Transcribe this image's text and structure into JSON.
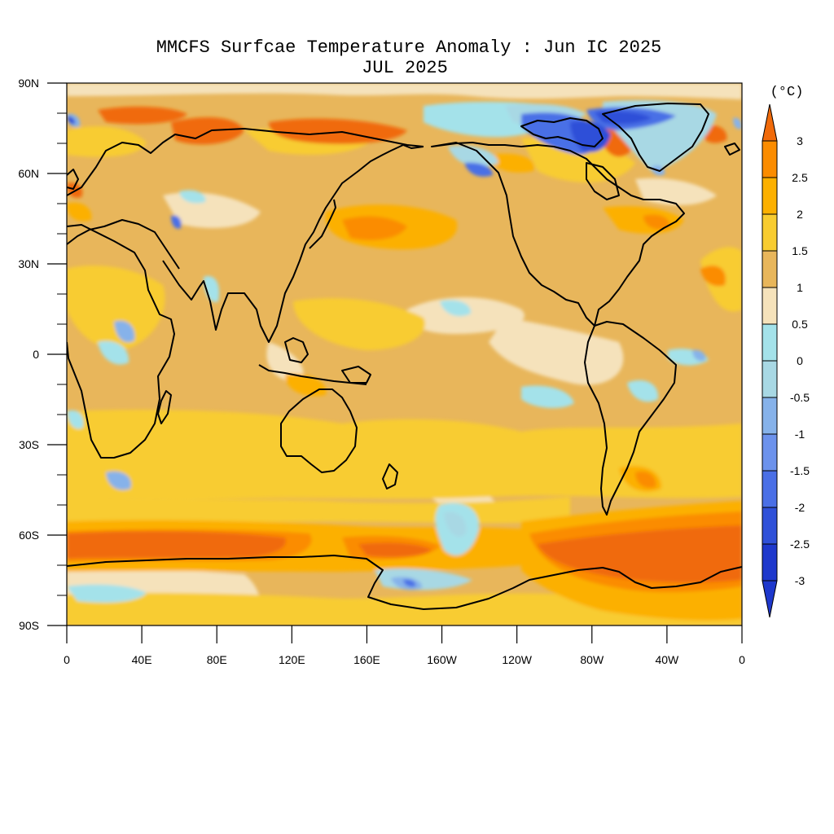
{
  "title": "MMCFS Surfcae Temperature Anomaly : Jun IC 2025",
  "subtitle": "JUL 2025",
  "units": "(°C)",
  "lat_ticks": [
    "90N",
    "60N",
    "30N",
    "0",
    "30S",
    "60S",
    "90S"
  ],
  "lon_ticks": [
    "0",
    "40E",
    "80E",
    "120E",
    "160E",
    "160W",
    "120W",
    "80W",
    "40W",
    "0"
  ],
  "colorbar": {
    "labels": [
      "3",
      "2.5",
      "2",
      "1.5",
      "1",
      "0.5",
      "0",
      "-0.5",
      "-1",
      "-1.5",
      "-2",
      "-2.5",
      "-3"
    ],
    "colors": [
      "#f06a0a",
      "#fb8c00",
      "#fcb000",
      "#f8cc30",
      "#e8b65b",
      "#f5e2bb",
      "#a4e2ea",
      "#a8d8e4",
      "#86b2ea",
      "#6c92ec",
      "#4a6fe6",
      "#2f50d8",
      "#1e38cc"
    ]
  },
  "chart_data": {
    "type": "heatmap",
    "title": "MMCFS Surfcae Temperature Anomaly : Jun IC 2025",
    "subtitle": "JUL 2025",
    "projection": "cylindrical equidistant, centered on 180",
    "lon_range": [
      0,
      360
    ],
    "lat_range": [
      -90,
      90
    ],
    "units": "°C",
    "contour_levels": [
      -3,
      -2.5,
      -2,
      -1.5,
      -1,
      -0.5,
      0,
      0.5,
      1,
      1.5,
      2,
      2.5,
      3
    ],
    "background_range": [
      0.5,
      1.5
    ],
    "features": [
      {
        "region": "Southern Ocean 55S-68S, 0-130E",
        "range": [
          2.5,
          3
        ]
      },
      {
        "region": "Southern Ocean 55S-75S, 80W-0",
        "range": [
          2.5,
          3
        ]
      },
      {
        "region": "Arctic coast of Eurasia 70N-80N",
        "range": [
          2.5,
          3
        ]
      },
      {
        "region": "Greenland and Canadian Archipelago",
        "range": [
          -3,
          -1
        ]
      },
      {
        "region": "Alaska coast",
        "range": [
          -2,
          -0.5
        ]
      },
      {
        "region": "Ross Sea 75S-80S",
        "range": [
          -2,
          -0.5
        ]
      },
      {
        "region": "South Pacific 60S-68S, 160W-180",
        "range": [
          -1,
          0
        ]
      },
      {
        "region": "Northwest Pacific 30N-45N",
        "range": [
          1.5,
          2.5
        ]
      },
      {
        "region": "North Atlantic 40N-50N",
        "range": [
          1.5,
          2.5
        ]
      },
      {
        "region": "Argentina",
        "range": [
          1.5,
          2.5
        ]
      },
      {
        "region": "Central Africa",
        "range": [
          -2,
          0
        ]
      },
      {
        "region": "Amazon basin",
        "range": [
          -1.5,
          0
        ]
      },
      {
        "region": "Equatorial east Pacific",
        "range": [
          0,
          0.5
        ]
      }
    ]
  }
}
